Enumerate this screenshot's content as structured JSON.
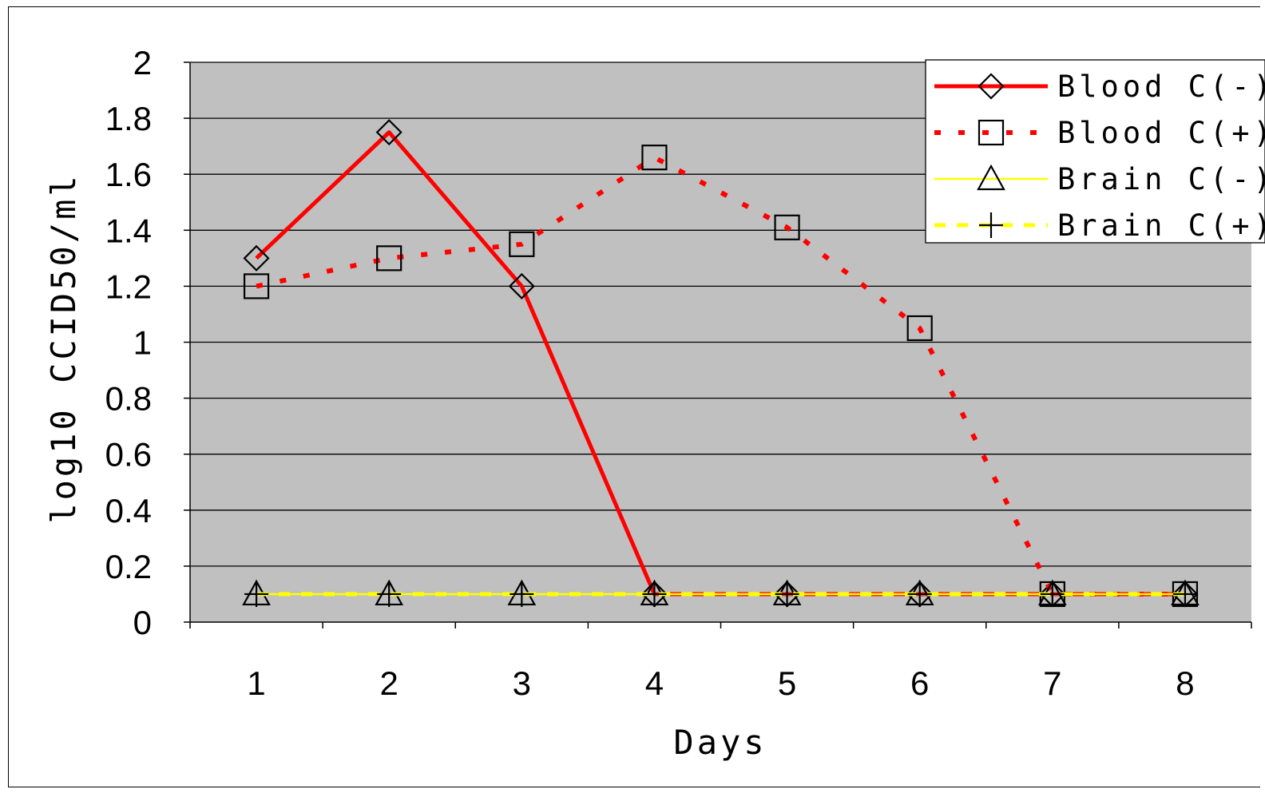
{
  "chart_data": {
    "type": "line",
    "xlabel": "Days",
    "ylabel": "log10 CCID50/ml",
    "categories": [
      "1",
      "2",
      "3",
      "4",
      "5",
      "6",
      "7",
      "8"
    ],
    "ylim": [
      0,
      2
    ],
    "yticks": [
      "0",
      "0.2",
      "0.4",
      "0.6",
      "0.8",
      "1",
      "1.2",
      "1.4",
      "1.6",
      "1.8",
      "2"
    ],
    "grid": true,
    "legend_position": "top-right",
    "plot_background": "#c0c0c0",
    "series": [
      {
        "name": "Blood C(-)",
        "values": [
          1.3,
          1.75,
          1.2,
          0.1,
          0.1,
          0.1,
          0.1,
          0.1
        ],
        "color": "#ff0000",
        "line": "solid",
        "marker": "diamond"
      },
      {
        "name": "Blood C(+)",
        "values": [
          1.2,
          1.3,
          1.35,
          1.66,
          1.41,
          1.05,
          0.1,
          0.1
        ],
        "color": "#ff0000",
        "line": "dotted",
        "marker": "square"
      },
      {
        "name": "Brain C(-)",
        "values": [
          0.1,
          0.1,
          0.1,
          0.1,
          0.1,
          0.1,
          0.1,
          0.1
        ],
        "color": "#ffff00",
        "line": "solid-thin",
        "marker": "triangle"
      },
      {
        "name": "Brain C(+)",
        "values": [
          0.1,
          0.1,
          0.1,
          0.1,
          0.1,
          0.1,
          0.1,
          0.1
        ],
        "color": "#ffff00",
        "line": "dashed",
        "marker": "plus"
      }
    ]
  }
}
